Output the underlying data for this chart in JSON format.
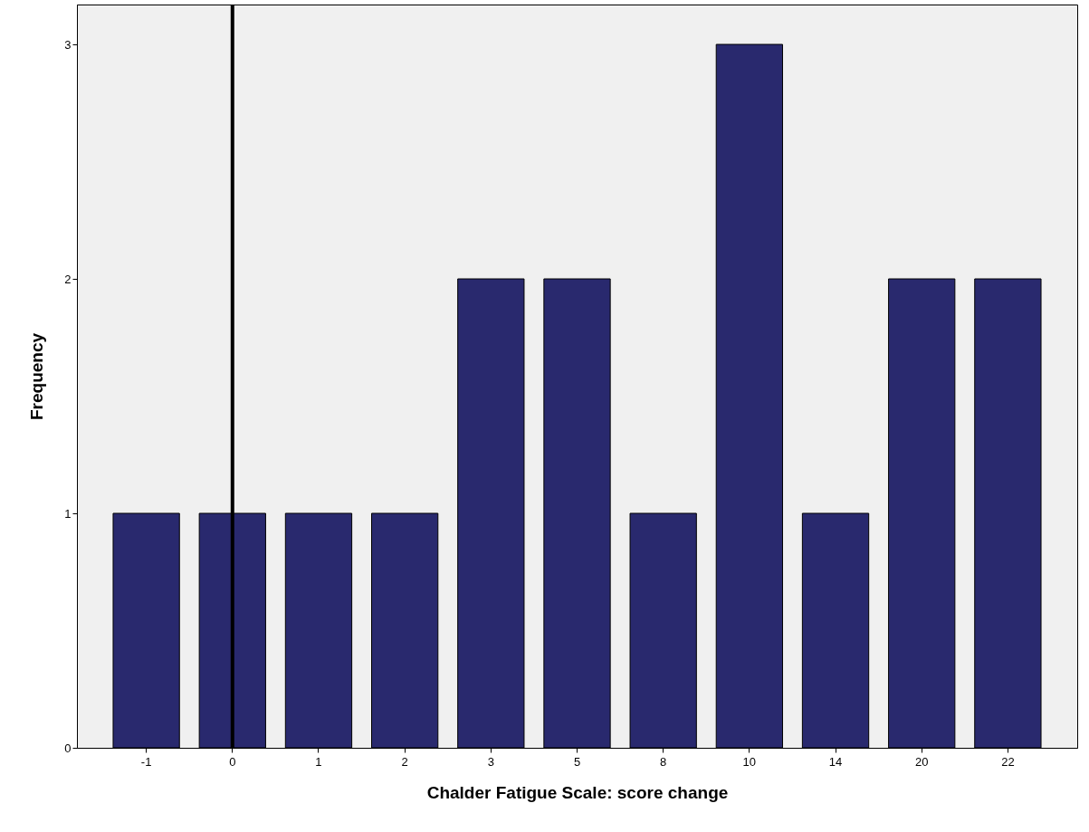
{
  "chart_data": {
    "type": "bar",
    "xlabel": "Chalder Fatigue Scale: score change",
    "ylabel": "Frequency",
    "categories": [
      "-1",
      "0",
      "1",
      "2",
      "3",
      "5",
      "8",
      "10",
      "14",
      "20",
      "22"
    ],
    "values": [
      1,
      1,
      1,
      1,
      2,
      2,
      1,
      3,
      1,
      2,
      2
    ],
    "color": "#29296e",
    "ylim": [
      0,
      3.17
    ],
    "yticks": [
      0,
      1,
      2,
      3
    ],
    "grid": false,
    "ref_lines": [
      {
        "axis": "x",
        "value": "0",
        "color": "#000000"
      }
    ]
  }
}
